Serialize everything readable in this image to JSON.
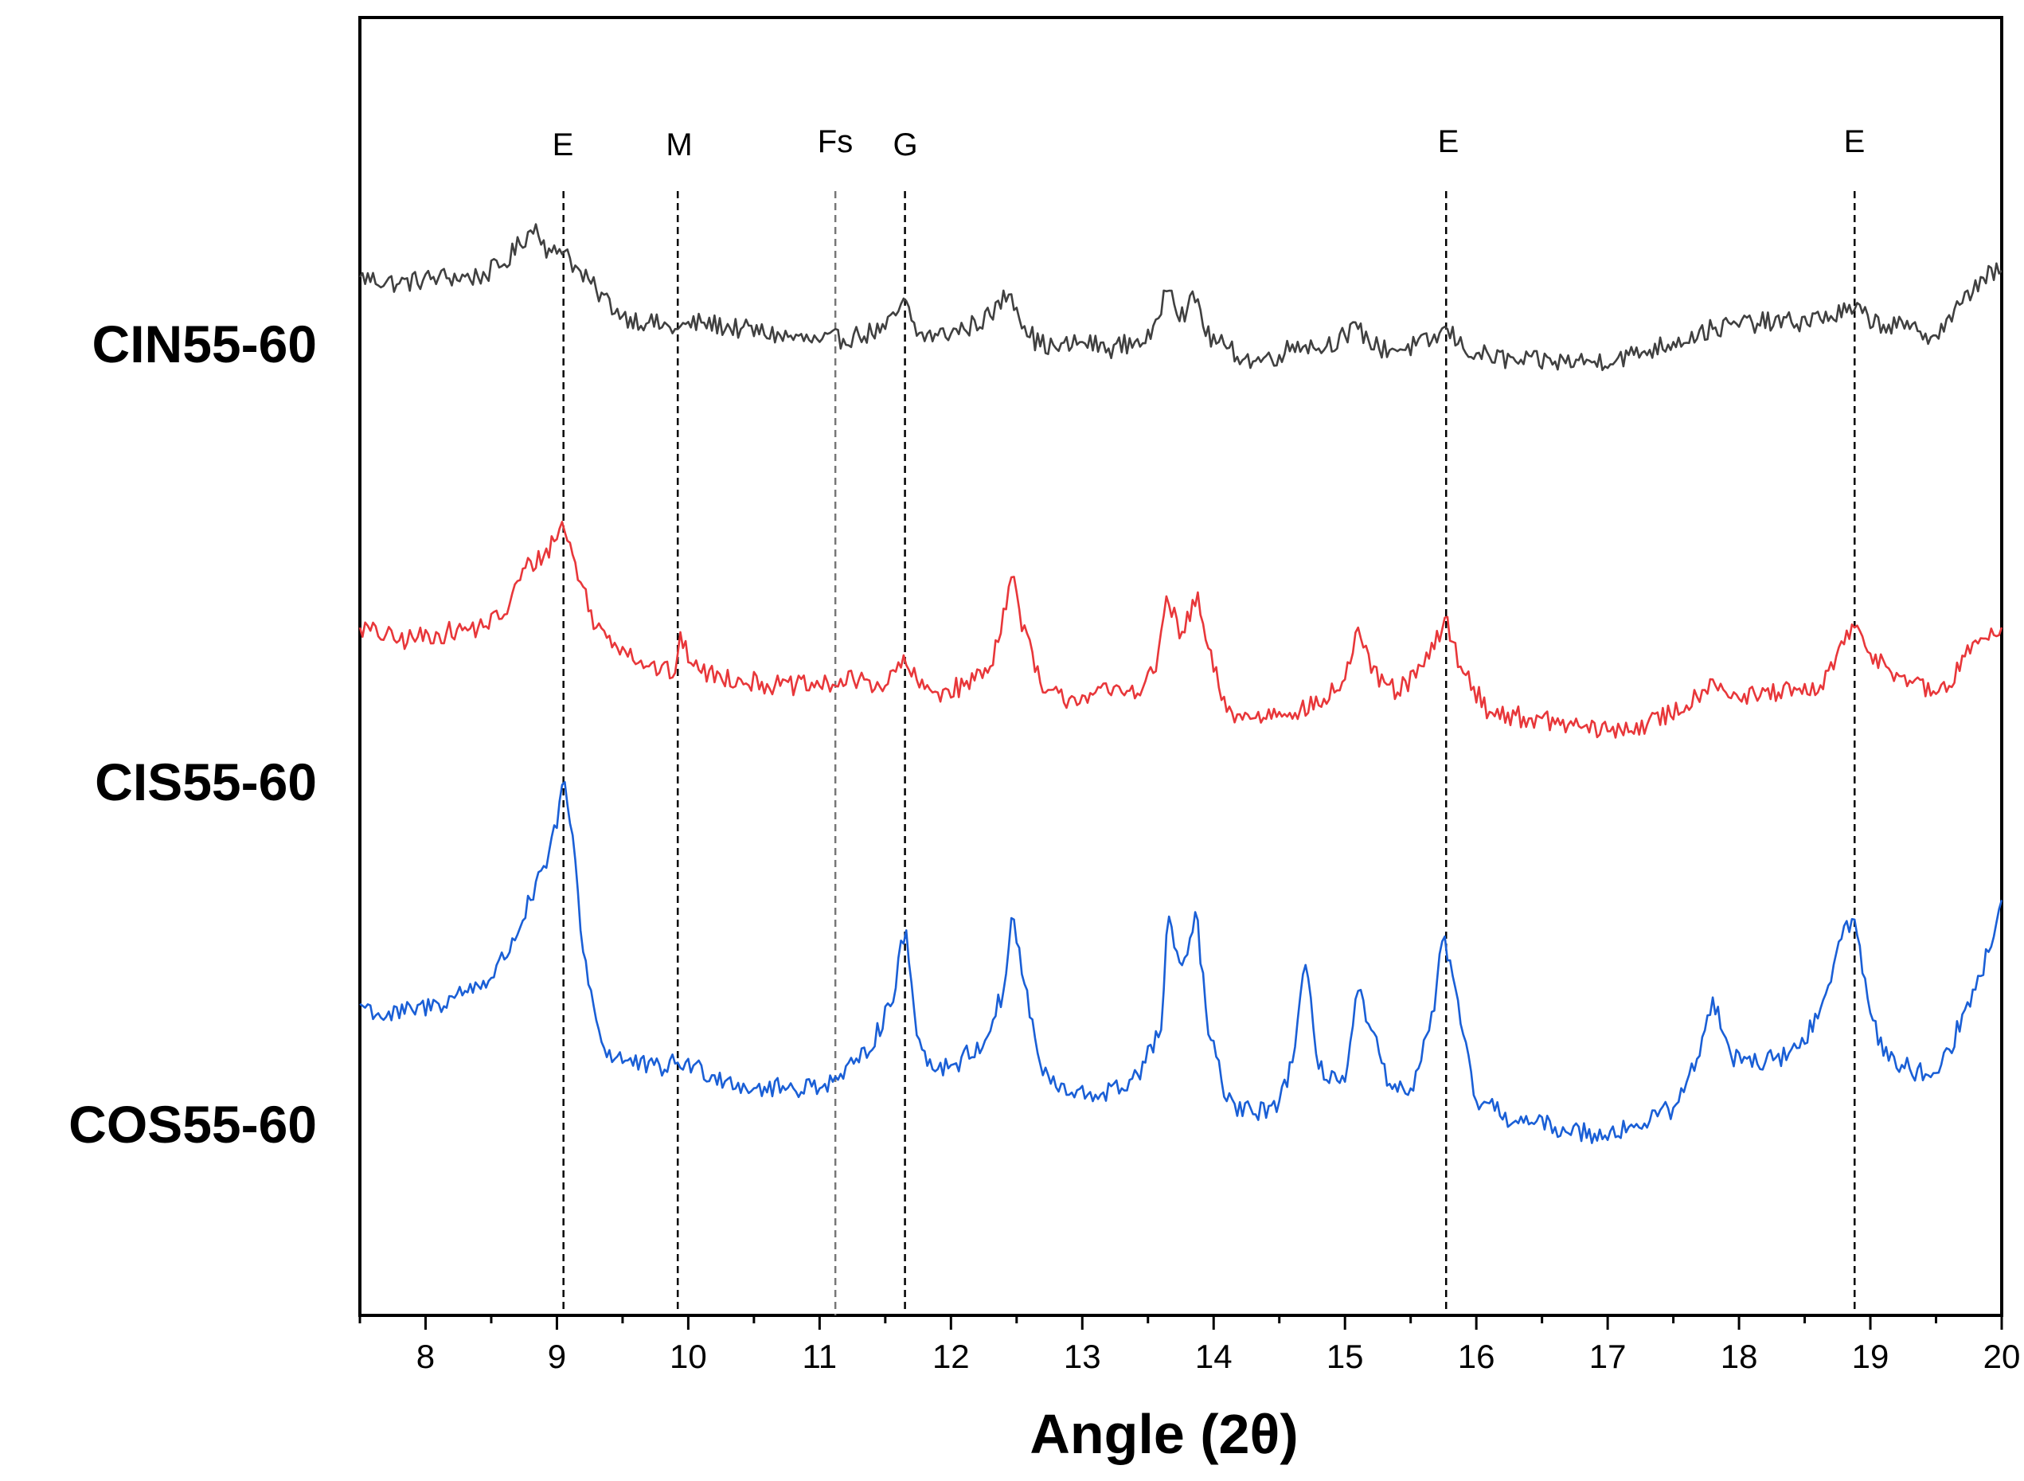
{
  "chart_data": {
    "type": "line",
    "title": "",
    "xlabel": "Angle (2θ)",
    "ylabel": "",
    "xlim": [
      7.5,
      20
    ],
    "x_ticks": [
      8,
      9,
      10,
      11,
      12,
      13,
      14,
      15,
      16,
      17,
      18,
      19,
      20
    ],
    "x_tick_labels": [
      "8",
      "9",
      "10",
      "11",
      "12",
      "13",
      "14",
      "15",
      "16",
      "17",
      "18",
      "19",
      "20"
    ],
    "grid": false,
    "y_ticks_shown": false,
    "ylim": [
      0,
      100
    ],
    "phase_markers": [
      {
        "label": "E",
        "x": 9.05
      },
      {
        "label": "M",
        "x": 9.92
      },
      {
        "label": "Fs",
        "x": 11.12
      },
      {
        "label": "G",
        "x": 11.65
      },
      {
        "label": "E",
        "x": 15.77
      },
      {
        "label": "E",
        "x": 18.88
      }
    ],
    "series": [
      {
        "name": "CIN55-60",
        "color": "#404040",
        "x": [
          7.5,
          7.8,
          8.1,
          8.4,
          8.6,
          8.75,
          8.85,
          8.95,
          9.05,
          9.15,
          9.3,
          9.5,
          9.7,
          9.9,
          10.1,
          10.4,
          10.7,
          11.0,
          11.3,
          11.5,
          11.65,
          11.75,
          11.9,
          12.1,
          12.3,
          12.45,
          12.55,
          12.65,
          12.8,
          13.0,
          13.2,
          13.4,
          13.55,
          13.65,
          13.75,
          13.87,
          13.95,
          14.1,
          14.3,
          14.5,
          14.65,
          14.8,
          15.0,
          15.1,
          15.25,
          15.45,
          15.65,
          15.78,
          15.9,
          16.05,
          16.3,
          16.6,
          16.9,
          17.2,
          17.5,
          17.8,
          18.1,
          18.4,
          18.7,
          18.88,
          19.05,
          19.3,
          19.5,
          19.7,
          19.85,
          20.0
        ],
        "y": [
          80,
          79.5,
          80,
          80,
          81,
          83,
          84,
          81.5,
          82.5,
          80.5,
          79,
          77,
          76.5,
          76,
          76.5,
          76,
          75.5,
          75,
          75.5,
          76,
          78,
          75.5,
          75.5,
          76,
          77,
          79,
          76.5,
          75,
          74.5,
          75,
          74.5,
          75,
          75.5,
          80,
          77,
          78.5,
          75.5,
          74.5,
          73.5,
          74,
          75,
          74.5,
          75.5,
          76,
          74.5,
          74.5,
          75,
          76,
          74.5,
          74,
          73.5,
          73.5,
          73.5,
          74,
          75,
          76,
          76.5,
          76.5,
          77,
          77.5,
          76.5,
          76,
          75.5,
          78,
          80,
          80.5
        ]
      },
      {
        "name": "CIS55-60",
        "color": "#e8373a",
        "x": [
          7.5,
          7.8,
          8.1,
          8.4,
          8.6,
          8.75,
          8.9,
          9.05,
          9.15,
          9.3,
          9.5,
          9.7,
          9.9,
          9.93,
          10.1,
          10.4,
          10.7,
          11.0,
          11.3,
          11.5,
          11.65,
          11.75,
          11.9,
          12.1,
          12.3,
          12.47,
          12.55,
          12.7,
          12.9,
          13.1,
          13.3,
          13.45,
          13.55,
          13.65,
          13.75,
          13.87,
          13.95,
          14.1,
          14.3,
          14.5,
          14.8,
          15.0,
          15.1,
          15.2,
          15.4,
          15.6,
          15.77,
          15.9,
          16.1,
          16.4,
          16.7,
          17.0,
          17.3,
          17.6,
          17.8,
          18.0,
          18.3,
          18.6,
          18.75,
          18.88,
          19.0,
          19.2,
          19.45,
          19.6,
          19.8,
          20.0
        ],
        "y": [
          53,
          52,
          52.5,
          53,
          54,
          57.5,
          58.5,
          61,
          57.5,
          53,
          51.5,
          50,
          49.5,
          52,
          49.5,
          49,
          48.5,
          48.5,
          49,
          48.5,
          50.5,
          48.5,
          48,
          48.5,
          50,
          57,
          53,
          48,
          47.5,
          48,
          48,
          48.5,
          49.5,
          55.5,
          52,
          55.5,
          51.5,
          46.5,
          46,
          46.5,
          47,
          49,
          53,
          49.5,
          48,
          50,
          53.5,
          49.5,
          46.5,
          46,
          45.5,
          45,
          45.5,
          47,
          49,
          47.5,
          48,
          48,
          51,
          53,
          51,
          49.5,
          48,
          48.5,
          52,
          53
        ]
      },
      {
        "name": "COS55-60",
        "color": "#1a5fd6",
        "x": [
          7.5,
          7.7,
          7.9,
          8.1,
          8.3,
          8.5,
          8.65,
          8.8,
          8.95,
          9.05,
          9.12,
          9.2,
          9.35,
          9.55,
          9.75,
          9.95,
          10.2,
          10.5,
          10.8,
          11.1,
          11.3,
          11.45,
          11.57,
          11.65,
          11.73,
          11.85,
          12.05,
          12.25,
          12.4,
          12.47,
          12.55,
          12.7,
          12.9,
          13.1,
          13.3,
          13.45,
          13.6,
          13.65,
          13.75,
          13.87,
          13.95,
          14.1,
          14.3,
          14.5,
          14.6,
          14.7,
          14.8,
          15.0,
          15.1,
          15.2,
          15.35,
          15.5,
          15.65,
          15.75,
          15.85,
          16.0,
          16.3,
          16.6,
          16.9,
          17.2,
          17.5,
          17.7,
          17.8,
          17.95,
          18.2,
          18.45,
          18.65,
          18.8,
          18.88,
          18.95,
          19.1,
          19.3,
          19.45,
          19.6,
          19.75,
          19.9,
          20.0
        ],
        "y": [
          24,
          23,
          23.5,
          24,
          25,
          26,
          28.5,
          32,
          35.5,
          41,
          37,
          28,
          20.5,
          19.5,
          19,
          19.5,
          18.5,
          17.5,
          17.5,
          18,
          19.5,
          22,
          25,
          30,
          22.5,
          19,
          19.5,
          21,
          25,
          31,
          26,
          18.5,
          17,
          17,
          17.5,
          19,
          22,
          31,
          26,
          31,
          22.5,
          16.5,
          15.5,
          16.5,
          19.5,
          27,
          19,
          18,
          25,
          22,
          17,
          17.5,
          22,
          29.5,
          24,
          16.5,
          15,
          14.5,
          14,
          14.5,
          16,
          20,
          24.5,
          20,
          19.5,
          20.5,
          24,
          30,
          30.5,
          26,
          20,
          19,
          18.5,
          20.5,
          24,
          28,
          32
        ]
      }
    ]
  },
  "series_labels": {
    "cin": "CIN55-60",
    "cis": "CIS55-60",
    "cos": "COS55-60"
  },
  "axis": {
    "x_title": "Angle (2θ)"
  },
  "phase_labels": {
    "e1": "E",
    "m": "M",
    "fs": "Fs",
    "g": "G",
    "e2": "E",
    "e3": "E"
  }
}
